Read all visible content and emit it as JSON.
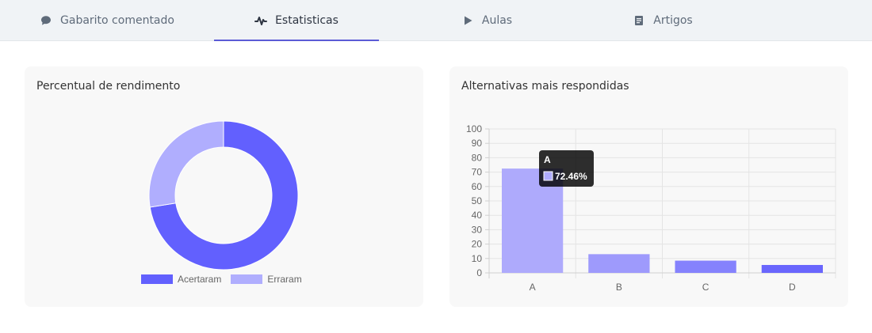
{
  "tabs": [
    {
      "label": "Gabarito comentado",
      "icon": "comment-icon",
      "active": false
    },
    {
      "label": "Estatisticas",
      "icon": "pulse-icon",
      "active": true
    },
    {
      "label": "Aulas",
      "icon": "play-icon",
      "active": false
    },
    {
      "label": "Artigos",
      "icon": "article-icon",
      "active": false
    }
  ],
  "colors": {
    "accent": "#5b5bd6",
    "correct": "#6260fe",
    "wrong": "#b0aefe",
    "bar_a": "#aeaafc",
    "bar_b": "#9e9afc",
    "bar_c": "#8582fd",
    "bar_d": "#6a66fd"
  },
  "chart_data": [
    {
      "type": "pie",
      "title": "Percentual de rendimento",
      "labels": [
        "Acertaram",
        "Erraram"
      ],
      "values": [
        72.46,
        27.54
      ],
      "donut": true,
      "legend": "bottom"
    },
    {
      "type": "bar",
      "title": "Alternativas mais respondidas",
      "categories": [
        "A",
        "B",
        "C",
        "D"
      ],
      "values": [
        72.46,
        13,
        8.5,
        5.5
      ],
      "ylim": [
        0,
        100
      ],
      "yticks": [
        0,
        10,
        20,
        30,
        40,
        50,
        60,
        70,
        80,
        90,
        100
      ],
      "grid": true,
      "tooltip": {
        "title": "A",
        "value": "72.46%"
      }
    }
  ]
}
